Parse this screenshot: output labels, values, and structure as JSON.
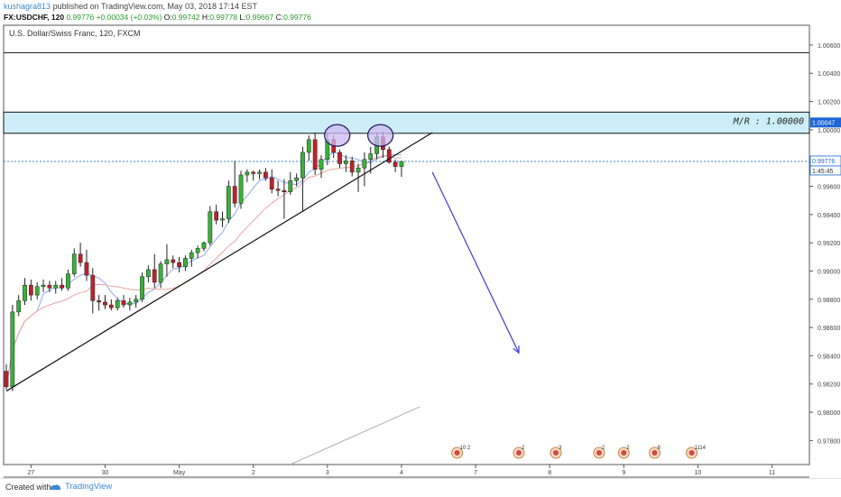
{
  "header": {
    "user": "kushagra813",
    "published": "published on TradingView.com, May 03, 2018 17:14 EST",
    "symbol": "FX:USDCHF, 120",
    "last": "0.99776",
    "change": "+0.00034 (+0.03%)",
    "o_label": "O:",
    "o": "0.99742",
    "h_label": "H:",
    "h": "0.99778",
    "l_label": "L:",
    "l": "0.99667",
    "c_label": "C:",
    "c": "0.99776"
  },
  "footer": {
    "created_with": "Created with",
    "brand": "TradingView"
  },
  "colors": {
    "up": "#36b336",
    "down": "#c0202c",
    "zone_fill": "#cdeef8",
    "ellipse_fill": "#c9b9f0",
    "ellipse_stroke": "#2a1a6a",
    "arrow": "#3b3bd6",
    "ma_fast": "#8fa8ee",
    "ma_slow": "#e9a4a4",
    "price_line": "#3a86d8"
  },
  "chart_data": {
    "type": "candlestick",
    "title": "U.S. Dollar/Swiss Franc, 120, FXCM",
    "ylim": [
      0.9763,
      1.0074
    ],
    "y_ticks": [
      "1.00600",
      "1.00400",
      "1.00200",
      "1.00000",
      "0.99800",
      "0.99600",
      "0.99400",
      "0.99200",
      "0.99000",
      "0.98800",
      "0.98600",
      "0.98400",
      "0.98200",
      "0.98000",
      "0.97800"
    ],
    "x_ticks": [
      {
        "label": "27",
        "i": 4
      },
      {
        "label": "30",
        "i": 16
      },
      {
        "label": "May",
        "i": 28
      },
      {
        "label": "2",
        "i": 40
      },
      {
        "label": "3",
        "i": 52
      },
      {
        "label": "4",
        "i": 64
      },
      {
        "label": "7",
        "i": 76
      },
      {
        "label": "8",
        "i": 88
      },
      {
        "label": "9",
        "i": 100
      },
      {
        "label": "10",
        "i": 112
      },
      {
        "label": "11",
        "i": 124
      }
    ],
    "candles": [
      [
        0.9829,
        0.9834,
        0.9816,
        0.9818
      ],
      [
        0.9818,
        0.9876,
        0.9815,
        0.9871
      ],
      [
        0.9871,
        0.9883,
        0.9868,
        0.9879
      ],
      [
        0.9879,
        0.9895,
        0.9876,
        0.989
      ],
      [
        0.989,
        0.9894,
        0.9879,
        0.9883
      ],
      [
        0.9883,
        0.9892,
        0.988,
        0.9889
      ],
      [
        0.9889,
        0.9894,
        0.9885,
        0.989
      ],
      [
        0.989,
        0.9893,
        0.9885,
        0.9888
      ],
      [
        0.9888,
        0.9893,
        0.9884,
        0.989
      ],
      [
        0.989,
        0.9895,
        0.9886,
        0.9888
      ],
      [
        0.9888,
        0.9901,
        0.9886,
        0.9898
      ],
      [
        0.9898,
        0.9916,
        0.9896,
        0.9912
      ],
      [
        0.9912,
        0.992,
        0.9903,
        0.9906
      ],
      [
        0.9906,
        0.9915,
        0.9893,
        0.9897
      ],
      [
        0.9897,
        0.9902,
        0.987,
        0.9879
      ],
      [
        0.9879,
        0.9883,
        0.9872,
        0.9878
      ],
      [
        0.9878,
        0.9883,
        0.9873,
        0.9876
      ],
      [
        0.9876,
        0.988,
        0.9872,
        0.9874
      ],
      [
        0.9874,
        0.9881,
        0.9872,
        0.9879
      ],
      [
        0.9879,
        0.9883,
        0.9874,
        0.9876
      ],
      [
        0.9876,
        0.9881,
        0.9872,
        0.9878
      ],
      [
        0.9878,
        0.9883,
        0.9874,
        0.988
      ],
      [
        0.988,
        0.9899,
        0.9878,
        0.9896
      ],
      [
        0.9896,
        0.9904,
        0.9892,
        0.9901
      ],
      [
        0.9901,
        0.9912,
        0.9888,
        0.9892
      ],
      [
        0.9892,
        0.9907,
        0.9888,
        0.9905
      ],
      [
        0.9905,
        0.9919,
        0.9896,
        0.9908
      ],
      [
        0.9908,
        0.9911,
        0.9902,
        0.9906
      ],
      [
        0.9906,
        0.991,
        0.9899,
        0.9903
      ],
      [
        0.9903,
        0.9911,
        0.99,
        0.9909
      ],
      [
        0.9909,
        0.9915,
        0.9903,
        0.9913
      ],
      [
        0.9913,
        0.9918,
        0.9909,
        0.9916
      ],
      [
        0.9916,
        0.9921,
        0.9914,
        0.992
      ],
      [
        0.992,
        0.9946,
        0.9918,
        0.9942
      ],
      [
        0.9942,
        0.9947,
        0.9933,
        0.9936
      ],
      [
        0.9936,
        0.9942,
        0.9931,
        0.9937
      ],
      [
        0.9937,
        0.9964,
        0.9934,
        0.996
      ],
      [
        0.996,
        0.9978,
        0.9945,
        0.9948
      ],
      [
        0.9948,
        0.9971,
        0.9944,
        0.9968
      ],
      [
        0.9968,
        0.9972,
        0.9963,
        0.997
      ],
      [
        0.997,
        0.9971,
        0.9964,
        0.9969
      ],
      [
        0.9969,
        0.9972,
        0.9965,
        0.997
      ],
      [
        0.997,
        0.9973,
        0.9964,
        0.9966
      ],
      [
        0.9966,
        0.9972,
        0.9955,
        0.9958
      ],
      [
        0.9958,
        0.9964,
        0.9953,
        0.9957
      ],
      [
        0.9957,
        0.9965,
        0.9937,
        0.9956
      ],
      [
        0.9956,
        0.997,
        0.9954,
        0.9964
      ],
      [
        0.9964,
        0.9969,
        0.996,
        0.9966
      ],
      [
        0.9966,
        0.9988,
        0.9942,
        0.9984
      ],
      [
        0.9984,
        0.9996,
        0.9978,
        0.9993
      ],
      [
        0.9993,
        0.9998,
        0.9968,
        0.9972
      ],
      [
        0.9972,
        0.9982,
        0.9966,
        0.9979
      ],
      [
        0.9979,
        0.9998,
        0.9975,
        0.9993
      ],
      [
        0.9993,
        0.9996,
        0.998,
        0.9984
      ],
      [
        0.9984,
        0.9986,
        0.9973,
        0.9976
      ],
      [
        0.9976,
        0.9982,
        0.997,
        0.9978
      ],
      [
        0.9978,
        0.9981,
        0.9967,
        0.997
      ],
      [
        0.997,
        0.9976,
        0.9956,
        0.9973
      ],
      [
        0.9973,
        0.9984,
        0.996,
        0.9979
      ],
      [
        0.9979,
        0.9988,
        0.9969,
        0.9983
      ],
      [
        0.9983,
        0.9998,
        0.9979,
        0.9995
      ],
      [
        0.9995,
        0.9999,
        0.998,
        0.9986
      ],
      [
        0.9986,
        0.9988,
        0.9976,
        0.9977
      ],
      [
        0.9977,
        0.9979,
        0.997,
        0.9974
      ],
      [
        0.9974,
        0.9978,
        0.99667,
        0.99776
      ]
    ],
    "x_count": 130,
    "annotations": {
      "zone_top": 1.00125,
      "zone_bottom": 0.99975,
      "resistance_line": 1.00545,
      "zone_label": "M/R : 1.00000",
      "zone_label_price": "1.00047",
      "current_price": "0.99776",
      "countdown": "1:45:45",
      "trendline": [
        [
          0,
          0.9815
        ],
        [
          69,
          0.9998
        ]
      ],
      "small_line": [
        [
          46,
          0.9763
        ],
        [
          67,
          0.9804
        ]
      ],
      "ellipses": [
        {
          "i": 53,
          "y": 0.9996
        },
        {
          "i": 60,
          "y": 0.9996
        }
      ],
      "arrow": [
        [
          69,
          0.997
        ],
        [
          83,
          0.9842
        ]
      ],
      "events": [
        {
          "i": 73,
          "label": "10 2"
        },
        {
          "i": 83,
          "label": "2"
        },
        {
          "i": 89,
          "label": "3"
        },
        {
          "i": 96,
          "label": "2"
        },
        {
          "i": 100,
          "label": "2"
        },
        {
          "i": 105,
          "label": "8"
        },
        {
          "i": 111,
          "label": "1114"
        }
      ]
    }
  }
}
